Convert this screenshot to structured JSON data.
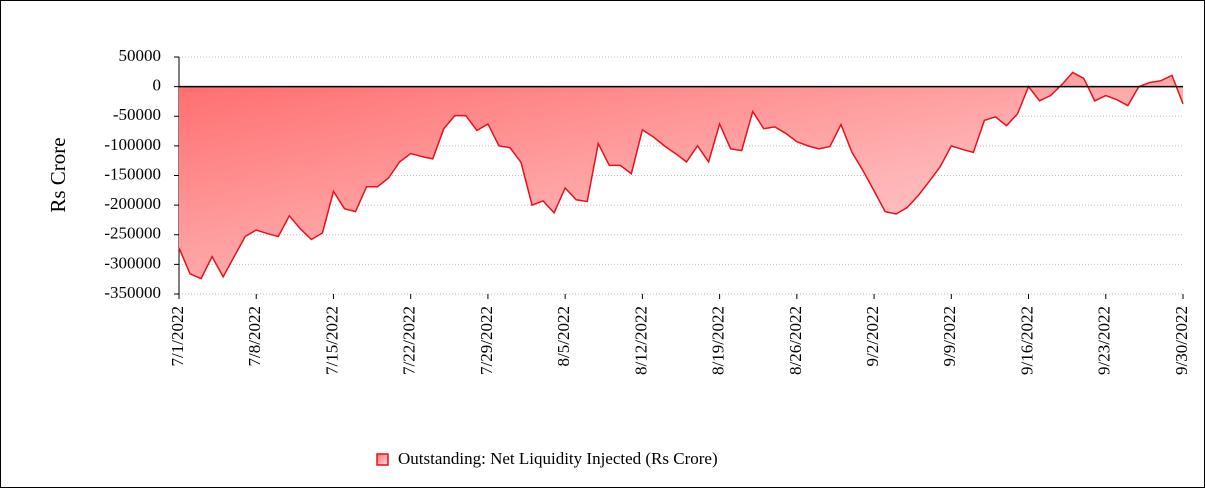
{
  "chart_data": {
    "type": "area",
    "y_label": "Rs Crore",
    "x": [
      "7/1/2022",
      "7/2/2022",
      "7/3/2022",
      "7/4/2022",
      "7/5/2022",
      "7/6/2022",
      "7/7/2022",
      "7/8/2022",
      "7/9/2022",
      "7/10/2022",
      "7/11/2022",
      "7/12/2022",
      "7/13/2022",
      "7/14/2022",
      "7/15/2022",
      "7/16/2022",
      "7/17/2022",
      "7/18/2022",
      "7/19/2022",
      "7/20/2022",
      "7/21/2022",
      "7/22/2022",
      "7/23/2022",
      "7/24/2022",
      "7/25/2022",
      "7/26/2022",
      "7/27/2022",
      "7/28/2022",
      "7/29/2022",
      "7/30/2022",
      "7/31/2022",
      "8/1/2022",
      "8/2/2022",
      "8/3/2022",
      "8/4/2022",
      "8/5/2022",
      "8/6/2022",
      "8/7/2022",
      "8/8/2022",
      "8/9/2022",
      "8/10/2022",
      "8/11/2022",
      "8/12/2022",
      "8/13/2022",
      "8/14/2022",
      "8/15/2022",
      "8/16/2022",
      "8/17/2022",
      "8/18/2022",
      "8/19/2022",
      "8/20/2022",
      "8/21/2022",
      "8/22/2022",
      "8/23/2022",
      "8/24/2022",
      "8/25/2022",
      "8/26/2022",
      "8/27/2022",
      "8/28/2022",
      "8/29/2022",
      "8/30/2022",
      "8/31/2022",
      "9/1/2022",
      "9/2/2022",
      "9/3/2022",
      "9/4/2022",
      "9/5/2022",
      "9/6/2022",
      "9/7/2022",
      "9/8/2022",
      "9/9/2022",
      "9/10/2022",
      "9/11/2022",
      "9/12/2022",
      "9/13/2022",
      "9/14/2022",
      "9/15/2022",
      "9/16/2022",
      "9/17/2022",
      "9/18/2022",
      "9/19/2022",
      "9/20/2022",
      "9/21/2022",
      "9/22/2022",
      "9/23/2022",
      "9/24/2022",
      "9/25/2022",
      "9/26/2022",
      "9/27/2022",
      "9/28/2022",
      "9/29/2022",
      "9/30/2022"
    ],
    "series": [
      {
        "name": "Outstanding: Net Liquidity Injected (Rs Crore)",
        "color": "#e8101a",
        "values": [
          -272000,
          -316000,
          -324000,
          -287000,
          -321000,
          -287000,
          -253000,
          -242000,
          -248000,
          -253000,
          -218000,
          -240000,
          -258000,
          -247000,
          -177000,
          -206000,
          -211000,
          -169000,
          -169000,
          -154000,
          -127000,
          -113000,
          -118000,
          -122000,
          -71000,
          -49000,
          -49000,
          -74000,
          -63000,
          -100000,
          -103000,
          -128000,
          -200000,
          -193000,
          -213000,
          -171000,
          -191000,
          -194000,
          -96000,
          -133000,
          -133000,
          -147000,
          -73000,
          -85000,
          -100000,
          -113000,
          -127000,
          -100000,
          -127000,
          -63000,
          -105000,
          -108000,
          -42000,
          -71000,
          -68000,
          -79000,
          -93000,
          -100000,
          -105000,
          -101000,
          -64000,
          -111000,
          -142000,
          -176000,
          -211000,
          -215000,
          -204000,
          -184000,
          -160000,
          -135000,
          -100000,
          -106000,
          -111000,
          -57000,
          -51000,
          -66000,
          -46000,
          0,
          -24000,
          -15000,
          3000,
          24000,
          14000,
          -24000,
          -15000,
          -22000,
          -32000,
          0,
          7000,
          10000,
          19000,
          -29000
        ]
      }
    ],
    "ylim": [
      -350000,
      50000
    ],
    "yticks": [
      50000,
      0,
      -50000,
      -100000,
      -150000,
      -200000,
      -250000,
      -300000,
      -350000
    ],
    "xticks": [
      "7/1/2022",
      "7/8/2022",
      "7/15/2022",
      "7/22/2022",
      "7/29/2022",
      "8/5/2022",
      "8/12/2022",
      "8/19/2022",
      "8/26/2022",
      "9/2/2022",
      "9/9/2022",
      "9/16/2022",
      "9/23/2022",
      "9/30/2022"
    ],
    "grid": true,
    "legend": "bottom"
  }
}
